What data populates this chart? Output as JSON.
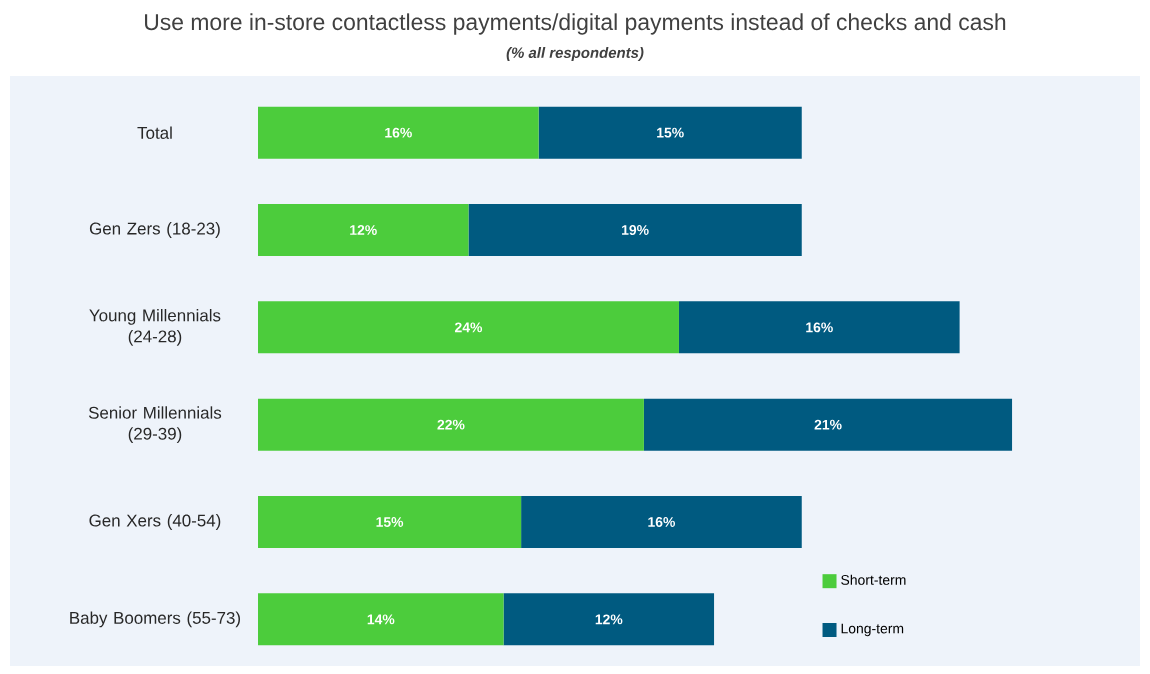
{
  "chart_data": {
    "type": "bar",
    "orientation": "horizontal",
    "stacked": true,
    "title": "Use more in-store contactless payments/digital payments instead of checks and cash",
    "subtitle": "(% all respondents)",
    "categories": [
      "Total",
      "Gen Zers (18-23)",
      "Young Millennials (24-28)",
      "Senior Millennials (29-39)",
      "Gen Xers (40-54)",
      "Baby Boomers (55-73)"
    ],
    "series": [
      {
        "name": "Short-term",
        "color": "#4ccc3c",
        "values": [
          16,
          12,
          24,
          22,
          15,
          14
        ],
        "value_labels": [
          "16%",
          "12%",
          "24%",
          "22%",
          "15%",
          "14%"
        ]
      },
      {
        "name": "Long-term",
        "color": "#005a80",
        "values": [
          15,
          19,
          16,
          21,
          16,
          12
        ],
        "value_labels": [
          "15%",
          "19%",
          "16%",
          "21%",
          "16%",
          "12%"
        ]
      }
    ],
    "tick_labels": "y",
    "legend": "bottom right"
  }
}
